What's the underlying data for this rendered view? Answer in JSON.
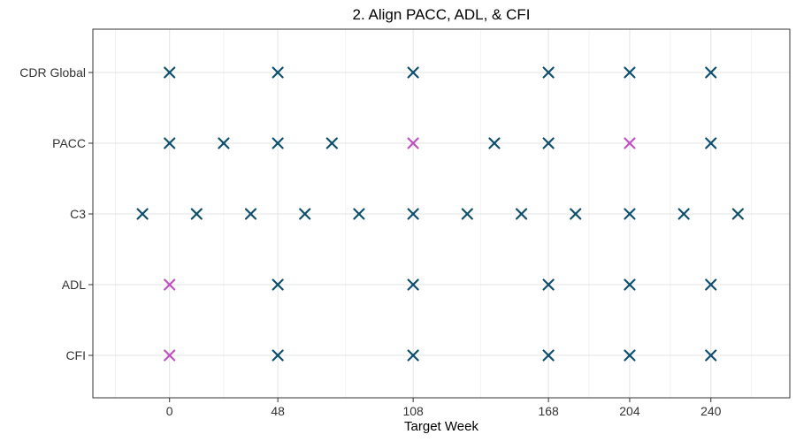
{
  "chart_data": {
    "type": "scatter",
    "title": "2. Align PACC, ADL, & CFI",
    "xlabel": "Target Week",
    "ylabel": "",
    "xlim": [
      -34,
      275
    ],
    "x_ticks": [
      0,
      48,
      108,
      168,
      204,
      240
    ],
    "x_tick_labels": [
      "0",
      "48",
      "108",
      "168",
      "204",
      "240"
    ],
    "categories": [
      "CDR Global",
      "PACC",
      "C3",
      "ADL",
      "CFI"
    ],
    "grid": true,
    "marker": "x",
    "colors": {
      "default": "#0d4f6c",
      "highlight": "#c050c0"
    },
    "series": [
      {
        "category": "CDR Global",
        "points": [
          {
            "x": 0,
            "hl": false
          },
          {
            "x": 48,
            "hl": false
          },
          {
            "x": 108,
            "hl": false
          },
          {
            "x": 168,
            "hl": false
          },
          {
            "x": 204,
            "hl": false
          },
          {
            "x": 240,
            "hl": false
          }
        ]
      },
      {
        "category": "PACC",
        "points": [
          {
            "x": 0,
            "hl": false
          },
          {
            "x": 24,
            "hl": false
          },
          {
            "x": 48,
            "hl": false
          },
          {
            "x": 72,
            "hl": false
          },
          {
            "x": 108,
            "hl": true
          },
          {
            "x": 144,
            "hl": false
          },
          {
            "x": 168,
            "hl": false
          },
          {
            "x": 204,
            "hl": true
          },
          {
            "x": 240,
            "hl": false
          }
        ]
      },
      {
        "category": "C3",
        "points": [
          {
            "x": -12,
            "hl": false
          },
          {
            "x": 12,
            "hl": false
          },
          {
            "x": 36,
            "hl": false
          },
          {
            "x": 60,
            "hl": false
          },
          {
            "x": 84,
            "hl": false
          },
          {
            "x": 108,
            "hl": false
          },
          {
            "x": 132,
            "hl": false
          },
          {
            "x": 156,
            "hl": false
          },
          {
            "x": 180,
            "hl": false
          },
          {
            "x": 204,
            "hl": false
          },
          {
            "x": 228,
            "hl": false
          },
          {
            "x": 252,
            "hl": false
          }
        ]
      },
      {
        "category": "ADL",
        "points": [
          {
            "x": 0,
            "hl": true
          },
          {
            "x": 48,
            "hl": false
          },
          {
            "x": 108,
            "hl": false
          },
          {
            "x": 168,
            "hl": false
          },
          {
            "x": 204,
            "hl": false
          },
          {
            "x": 240,
            "hl": false
          }
        ]
      },
      {
        "category": "CFI",
        "points": [
          {
            "x": 0,
            "hl": true
          },
          {
            "x": 48,
            "hl": false
          },
          {
            "x": 108,
            "hl": false
          },
          {
            "x": 168,
            "hl": false
          },
          {
            "x": 204,
            "hl": false
          },
          {
            "x": 240,
            "hl": false
          }
        ]
      }
    ]
  }
}
